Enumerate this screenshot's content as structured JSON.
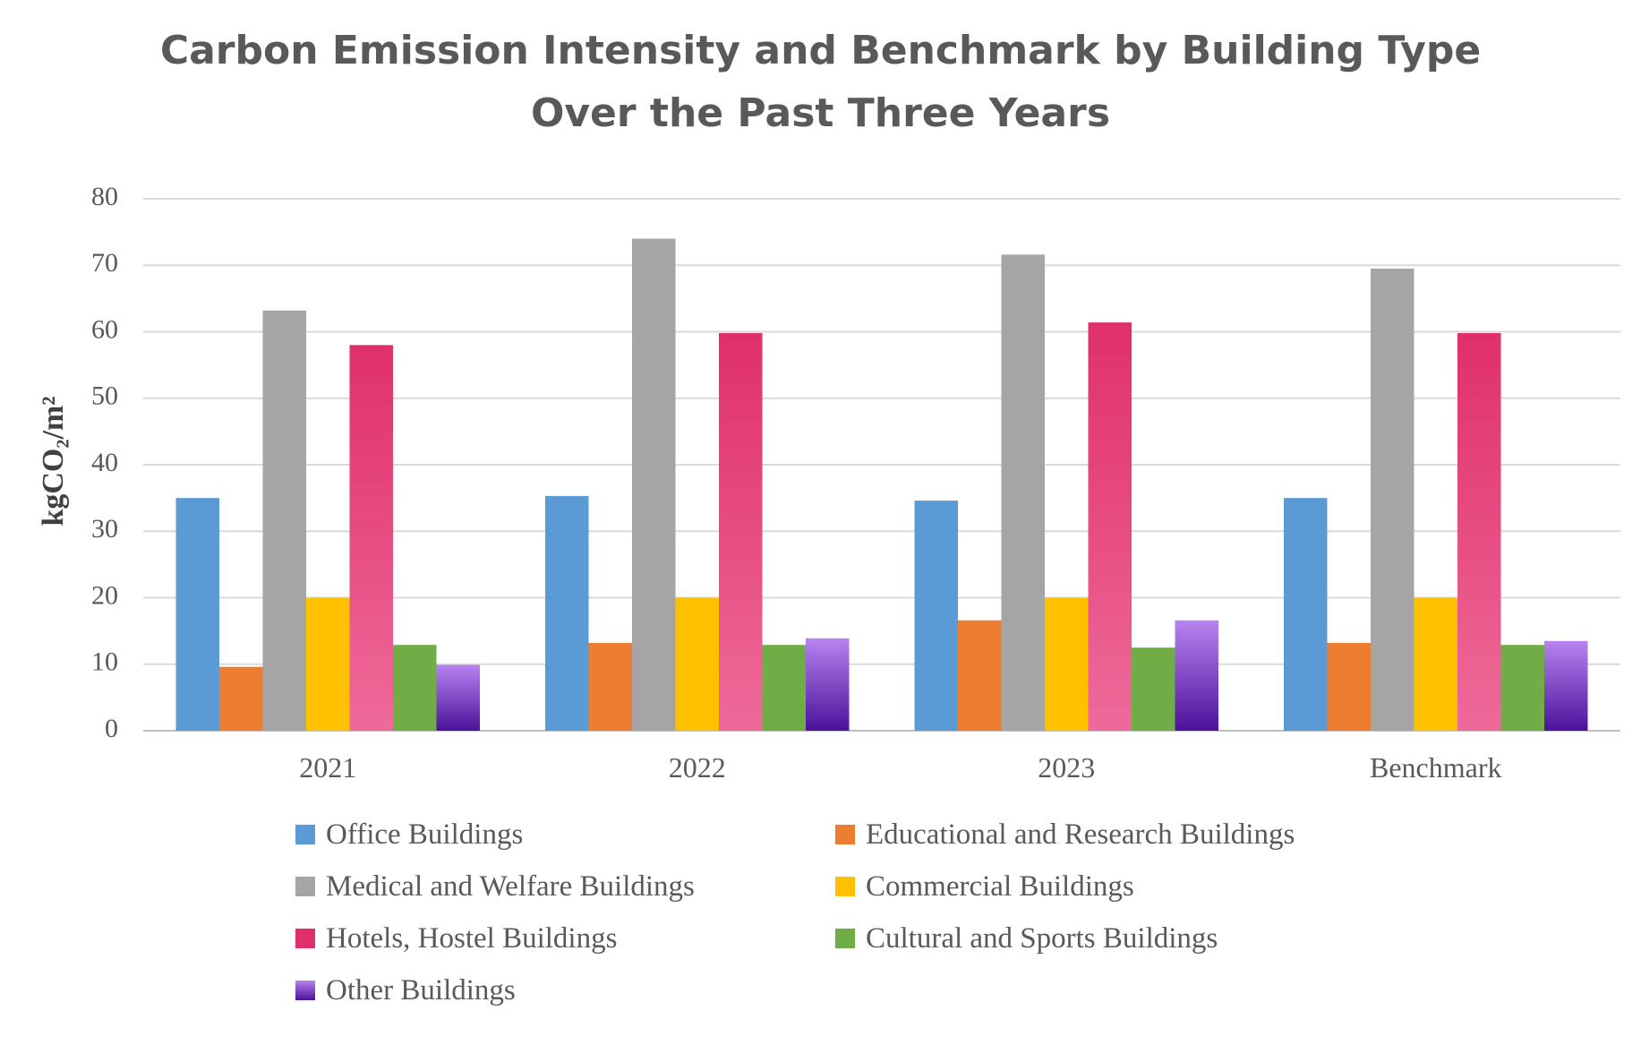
{
  "chart_data": {
    "type": "bar",
    "title": "Carbon Emission Intensity and Benchmark by Building Type Over the Past Three Years",
    "title_lines": [
      "Carbon Emission Intensity and Benchmark by Building Type",
      "Over the Past Three Years"
    ],
    "xlabel": "",
    "ylabel": "kgCO₂/m²",
    "ylim": [
      0,
      80
    ],
    "yticks": [
      0,
      10,
      20,
      30,
      40,
      50,
      60,
      70,
      80
    ],
    "grid": true,
    "legend_position": "bottom",
    "categories": [
      "2021",
      "2022",
      "2023",
      "Benchmark"
    ],
    "series": [
      {
        "name": "Office Buildings",
        "color": "#5B9BD5",
        "values": [
          35,
          35.3,
          34.6,
          35
        ]
      },
      {
        "name": "Educational and Research Buildings",
        "color": "#ED7D31",
        "values": [
          9.6,
          13.2,
          16.6,
          13.2
        ]
      },
      {
        "name": "Medical and Welfare Buildings",
        "color": "#A5A5A5",
        "values": [
          63.2,
          74,
          71.6,
          69.5
        ]
      },
      {
        "name": "Commercial Buildings",
        "color": "#FFC000",
        "values": [
          20,
          20,
          20,
          20
        ]
      },
      {
        "name": "Hotels, Hostel Buildings",
        "color": "#E0306A",
        "color_light": "#EE6A9A",
        "values": [
          58,
          59.8,
          61.4,
          59.8
        ]
      },
      {
        "name": "Cultural and Sports Buildings",
        "color": "#70AD47",
        "values": [
          12.9,
          12.9,
          12.5,
          12.9
        ]
      },
      {
        "name": "Other Buildings",
        "color": "#4B129A",
        "color_light": "#B784F0",
        "values": [
          9.9,
          13.9,
          16.6,
          13.5
        ]
      }
    ]
  }
}
